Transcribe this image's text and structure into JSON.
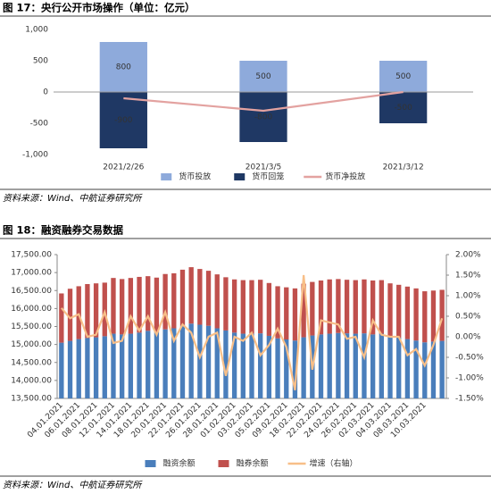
{
  "chart_data": [
    {
      "type": "bar",
      "title": "图 17：央行公开市场操作（单位：亿元）",
      "source": "资料来源：Wind、中航证券研究所",
      "categories": [
        "2021/2/26",
        "2021/3/5",
        "2021/3/12"
      ],
      "series": [
        {
          "name": "货币投放",
          "color": "#8eaadb",
          "type": "bar",
          "values": [
            800,
            500,
            500
          ]
        },
        {
          "name": "货币回笼",
          "color": "#1f3864",
          "type": "bar",
          "values": [
            -900,
            -800,
            -500
          ]
        },
        {
          "name": "货币净投放",
          "color": "#e3a2a0",
          "type": "line",
          "values": [
            -100,
            -300,
            0
          ]
        }
      ],
      "ylim": [
        -1000,
        1000
      ],
      "yticks": [
        {
          "value": -1000,
          "label": "-1,000"
        },
        -500,
        0,
        500,
        {
          "value": 1000,
          "label": "1,000"
        }
      ],
      "data_labels": true,
      "grid": false,
      "legend": "bottom"
    },
    {
      "type": "bar",
      "title": "图 18：融资融券交易数据",
      "source": "资料来源：Wind、中航证券研究所",
      "categories": [
        "04.01.2021",
        null,
        "06.01.2021",
        null,
        "08.01.2021",
        null,
        "12.01.2021",
        null,
        "14.01.2021",
        null,
        "18.01.2021",
        null,
        "20.01.2021",
        null,
        "22.01.2021",
        null,
        "26.01.2021",
        null,
        "28.01.2021",
        null,
        "01.02.2021",
        null,
        "03.02.2021",
        null,
        "05.02.2021",
        null,
        "09.02.2021",
        null,
        "18.02.2021",
        null,
        "22.02.2021",
        null,
        "24.02.2021",
        null,
        "26.02.2021",
        null,
        "02.03.2021",
        null,
        "04.03.2021",
        null,
        "08.03.2021",
        null,
        "10.03.2021",
        null,
        null
      ],
      "series": [
        {
          "name": "融资余额",
          "color": "#4a7ebb",
          "type": "bar",
          "values": [
            15050,
            15100,
            15150,
            15180,
            15200,
            15230,
            15300,
            15280,
            15300,
            15330,
            15380,
            15340,
            15420,
            15450,
            15520,
            15580,
            15550,
            15520,
            15450,
            15390,
            15330,
            15300,
            15300,
            15310,
            15240,
            15170,
            15140,
            15110,
            15200,
            15250,
            15280,
            15300,
            15320,
            15310,
            15300,
            15310,
            15280,
            15300,
            15230,
            15190,
            15150,
            15110,
            15060,
            15080,
            15100
          ]
        },
        {
          "name": "融券余额",
          "color": "#c0504d",
          "type": "bar",
          "values": [
            1370,
            1450,
            1470,
            1500,
            1500,
            1490,
            1550,
            1540,
            1550,
            1550,
            1520,
            1520,
            1540,
            1530,
            1560,
            1570,
            1550,
            1530,
            1500,
            1480,
            1480,
            1490,
            1490,
            1490,
            1470,
            1450,
            1450,
            1450,
            1490,
            1490,
            1500,
            1510,
            1500,
            1490,
            1490,
            1500,
            1500,
            1490,
            1470,
            1470,
            1460,
            1450,
            1420,
            1420,
            1420
          ]
        },
        {
          "name": "增速（右轴）",
          "color": "#f8bf88",
          "type": "line",
          "axis": "y2",
          "values": [
            0.7,
            0.45,
            0.55,
            0.0,
            0.05,
            0.6,
            -0.15,
            -0.1,
            0.5,
            0.15,
            0.5,
            0.05,
            0.6,
            -0.1,
            0.3,
            0.1,
            -0.5,
            0.0,
            0.1,
            -0.95,
            0.0,
            -0.1,
            0.1,
            -0.45,
            -0.2,
            0.2,
            -0.25,
            -1.3,
            1.5,
            -0.8,
            0.4,
            0.35,
            0.3,
            -0.05,
            0.0,
            -0.5,
            0.4,
            0.05,
            0.0,
            0.0,
            -0.45,
            -0.3,
            -0.7,
            -0.2,
            0.45
          ]
        }
      ],
      "ylim": [
        13500,
        17500
      ],
      "yticks": [
        {
          "value": 13500,
          "label": "13,500.00"
        },
        {
          "value": 14000,
          "label": "14,000.00"
        },
        {
          "value": 14500,
          "label": "14,500.00"
        },
        {
          "value": 15000,
          "label": "15,000.00"
        },
        {
          "value": 15500,
          "label": "15,500.00"
        },
        {
          "value": 16000,
          "label": "16,000.00"
        },
        {
          "value": 16500,
          "label": "16,500.00"
        },
        {
          "value": 17000,
          "label": "17,000.00"
        },
        {
          "value": 17500,
          "label": "17,500.00"
        }
      ],
      "y2lim": [
        -1.5,
        2.0
      ],
      "y2ticks": [
        {
          "value": -1.5,
          "label": "-1.50%"
        },
        {
          "value": -1.0,
          "label": "-1.00%"
        },
        {
          "value": -0.5,
          "label": "-0.50%"
        },
        {
          "value": 0,
          "label": "0.00%"
        },
        {
          "value": 0.5,
          "label": "0.50%"
        },
        {
          "value": 1.0,
          "label": "1.00%"
        },
        {
          "value": 1.5,
          "label": "1.50%"
        },
        {
          "value": 2.0,
          "label": "2.00%"
        }
      ],
      "data_labels": false,
      "grid": false,
      "legend": "bottom"
    }
  ]
}
